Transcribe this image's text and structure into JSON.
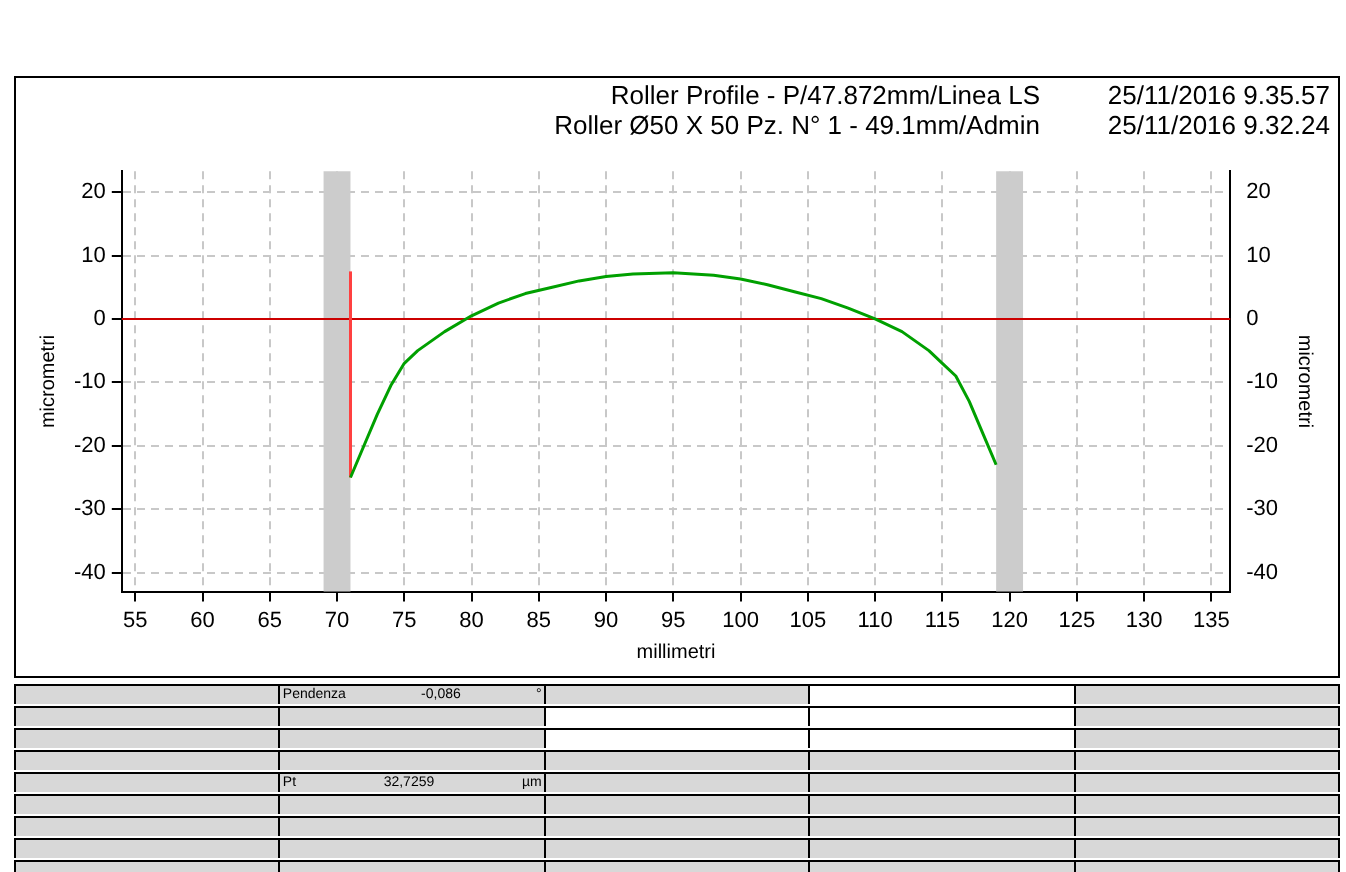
{
  "chart_data": {
    "type": "line",
    "title": "Roller Profile  - P/47.872mm/Linea LS",
    "subtitle": "Roller Ø50 X 50 Pz. N° 1 - 49.1mm/Admin",
    "xlabel": "millimetri",
    "ylabel": "micrometri",
    "y2label": "micrometri",
    "xlim": [
      54,
      136.4
    ],
    "xticks": [
      55,
      60,
      65,
      70,
      75,
      80,
      85,
      90,
      95,
      100,
      105,
      110,
      115,
      120,
      125,
      130,
      135
    ],
    "ylim": [
      -43,
      23.3
    ],
    "yticks": [
      -40,
      -30,
      -20,
      -10,
      0,
      10,
      20
    ],
    "y2lim": [
      -43,
      23.3
    ],
    "y2ticks": [
      -40,
      -30,
      -20,
      -10,
      0,
      10,
      20
    ],
    "grid": true,
    "legend": false,
    "marker": "none",
    "line_style": "solid",
    "series": [
      {
        "color": "#00a000",
        "x": [
          71,
          72,
          73,
          74,
          75,
          76,
          78,
          80,
          82,
          84,
          86,
          88,
          90,
          92,
          95,
          98,
          100,
          102,
          104,
          106,
          108,
          110,
          112,
          114,
          115,
          116,
          117,
          118,
          119
        ],
        "values": [
          -25,
          -20,
          -15,
          -10.5,
          -7,
          -5,
          -2,
          0.5,
          2.5,
          4,
          5,
          6,
          6.7,
          7.1,
          7.3,
          6.9,
          6.3,
          5.4,
          4.3,
          3.2,
          1.7,
          0,
          -2,
          -5,
          -7,
          -9,
          -13,
          -18,
          -23
        ]
      },
      {
        "color": "#ff4040",
        "x": [
          71,
          71
        ],
        "values": [
          -25,
          7.5
        ]
      }
    ],
    "ref_lines": [
      {
        "axis": "y",
        "value": 0,
        "color": "#cc0000"
      }
    ],
    "bands": [
      {
        "axis": "x",
        "from": 69,
        "to": 71,
        "color": "#cccccc"
      },
      {
        "axis": "x",
        "from": 119,
        "to": 121,
        "color": "#cccccc"
      }
    ],
    "annotations": [
      "25/11/2016 9.35.57",
      "25/11/2016 9.32.24",
      "Pendenza",
      "-0,086",
      "°",
      "Pt",
      "32,7259",
      "µm"
    ]
  }
}
